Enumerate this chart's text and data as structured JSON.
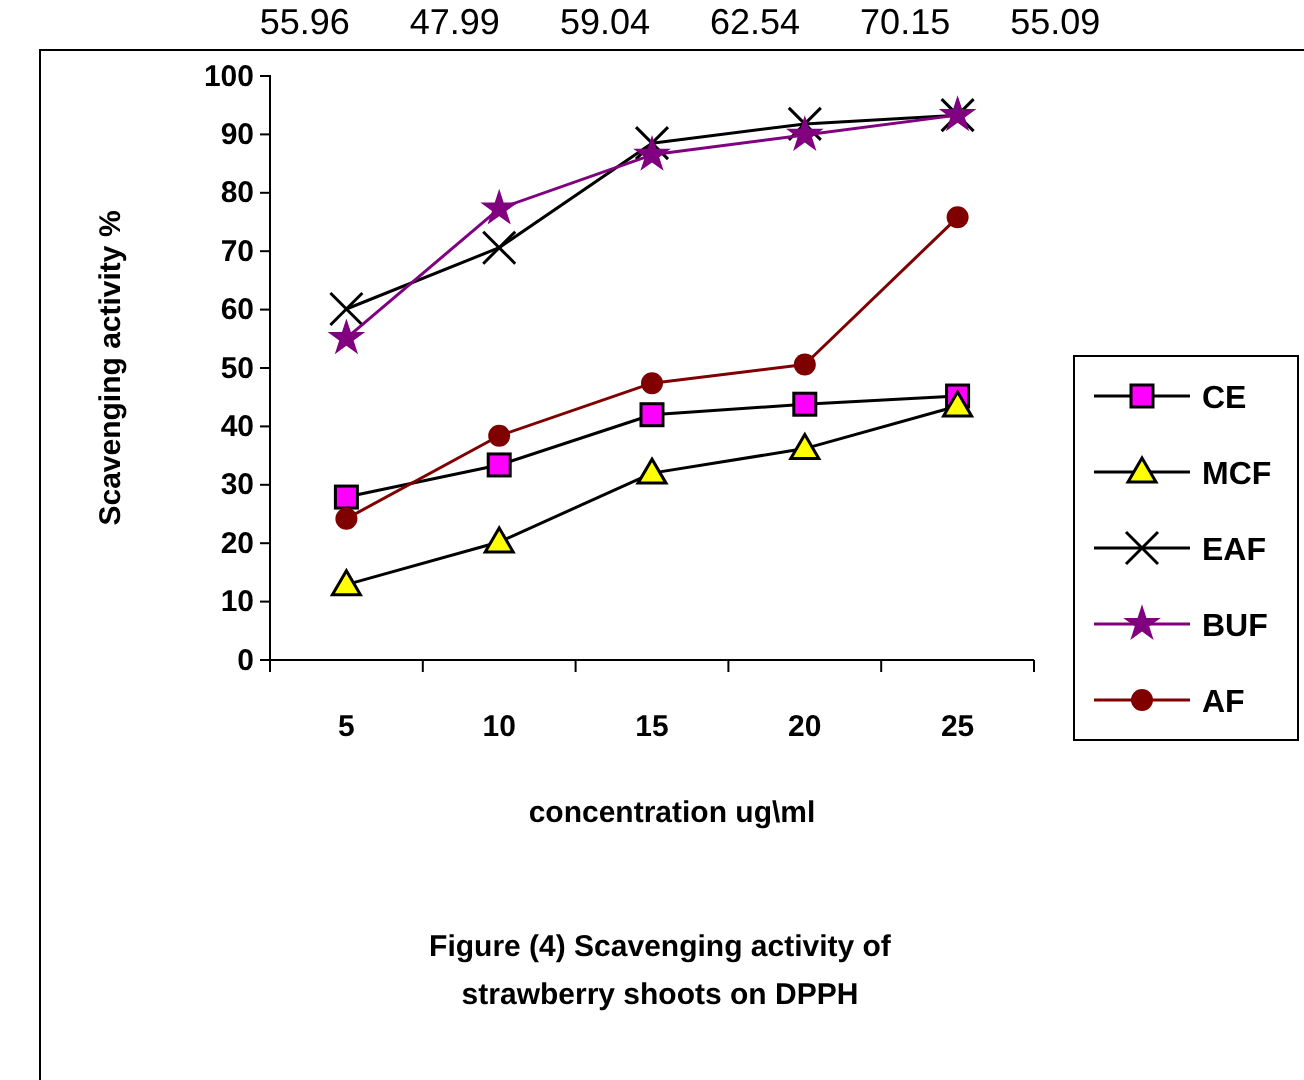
{
  "chart_data": {
    "type": "line",
    "xlabel": "concentration ug\\ml",
    "ylabel": "Scavenging activity %",
    "annotations": [
      "55.96      47.99      59.04      62.54      70.15      55.09",
      "Figure (4) Scavenging activity of\nstrawberry shoots on DPPH"
    ],
    "categories": [
      "5",
      "10",
      "15",
      "20",
      "25"
    ],
    "series": [
      {
        "name": "CE",
        "color": "#000000",
        "colors": [
          "#ff00ff",
          "#ff00ff",
          "#ff00ff",
          "#ff00ff",
          "#ff00ff"
        ],
        "marker": "square",
        "values": [
          27.9,
          33.4,
          42.0,
          43.8,
          45.2
        ]
      },
      {
        "name": "MCF",
        "color": "#000000",
        "colors": [
          "#ffff00",
          "#ffff00",
          "#ffff00",
          "#ffff00",
          "#ffff00"
        ],
        "marker": "triangle",
        "values": [
          12.9,
          20.2,
          32.0,
          36.2,
          43.5
        ]
      },
      {
        "name": "EAF",
        "color": "#000000",
        "marker": "cross",
        "values": [
          60.1,
          70.6,
          88.5,
          91.8,
          93.3
        ]
      },
      {
        "name": "BUF",
        "color": "#800080",
        "marker": "star",
        "values": [
          55.1,
          77.3,
          86.5,
          89.9,
          93.3
        ]
      },
      {
        "name": "AF",
        "color": "#800000",
        "marker": "circle",
        "values": [
          24.2,
          38.4,
          47.4,
          50.6,
          75.8
        ]
      }
    ],
    "ylim": [
      0,
      100
    ],
    "yticks": [
      0,
      10,
      20,
      30,
      40,
      50,
      60,
      70,
      80,
      90,
      100
    ],
    "legend": "right"
  }
}
